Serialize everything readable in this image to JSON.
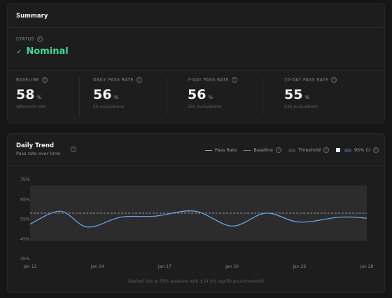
{
  "summary": {
    "title": "Summary",
    "status_label": "STATUS",
    "status_icon": "check-icon",
    "status_value": "Nominal",
    "status_color": "#3fd49a",
    "metrics": [
      {
        "label": "BASELINE",
        "value": "58",
        "unit": "%",
        "sub": "reference rate"
      },
      {
        "label": "DAILY PASS RATE",
        "value": "56",
        "unit": "%",
        "sub": "50 evaluations"
      },
      {
        "label": "7-DAY PASS RATE",
        "value": "56",
        "unit": "%",
        "sub": "191 evaluations"
      },
      {
        "label": "30-DAY PASS RATE",
        "value": "55",
        "unit": "%",
        "sub": "636 evaluations"
      }
    ]
  },
  "trend": {
    "title": "Daily Trend",
    "subtitle": "Pass rate over time",
    "legend": {
      "pass_rate": "Pass Rate",
      "baseline": "Baseline",
      "threshold": "Threshold",
      "ci": "95% CI",
      "ci_checked": true
    },
    "caption": "Dashed line at 58% baseline with ±14.0% significance threshold",
    "colors": {
      "line": "#6aaef5",
      "band": "#2c2c2c",
      "baseline": "#9a9a9a"
    }
  },
  "chart_data": {
    "type": "line",
    "y_ticks": [
      "75%",
      "65%",
      "55%",
      "45%",
      "35%"
    ],
    "ylim": [
      35,
      75
    ],
    "x_ticks": [
      "Jan 12",
      "Jan 14",
      "Jan 17",
      "Jan 20",
      "Jan 26",
      "Jan 28"
    ],
    "baseline": 58,
    "threshold_band": [
      44,
      72
    ],
    "series": [
      {
        "name": "Pass Rate",
        "points": [
          [
            0,
            52.5
          ],
          [
            0.9,
            59
          ],
          [
            1.7,
            51
          ],
          [
            2.7,
            56
          ],
          [
            3.7,
            56.5
          ],
          [
            4.9,
            59
          ],
          [
            6.0,
            51.5
          ],
          [
            7.0,
            58
          ],
          [
            8.0,
            53.5
          ],
          [
            9.2,
            56
          ],
          [
            10.0,
            55.5
          ]
        ]
      }
    ]
  }
}
